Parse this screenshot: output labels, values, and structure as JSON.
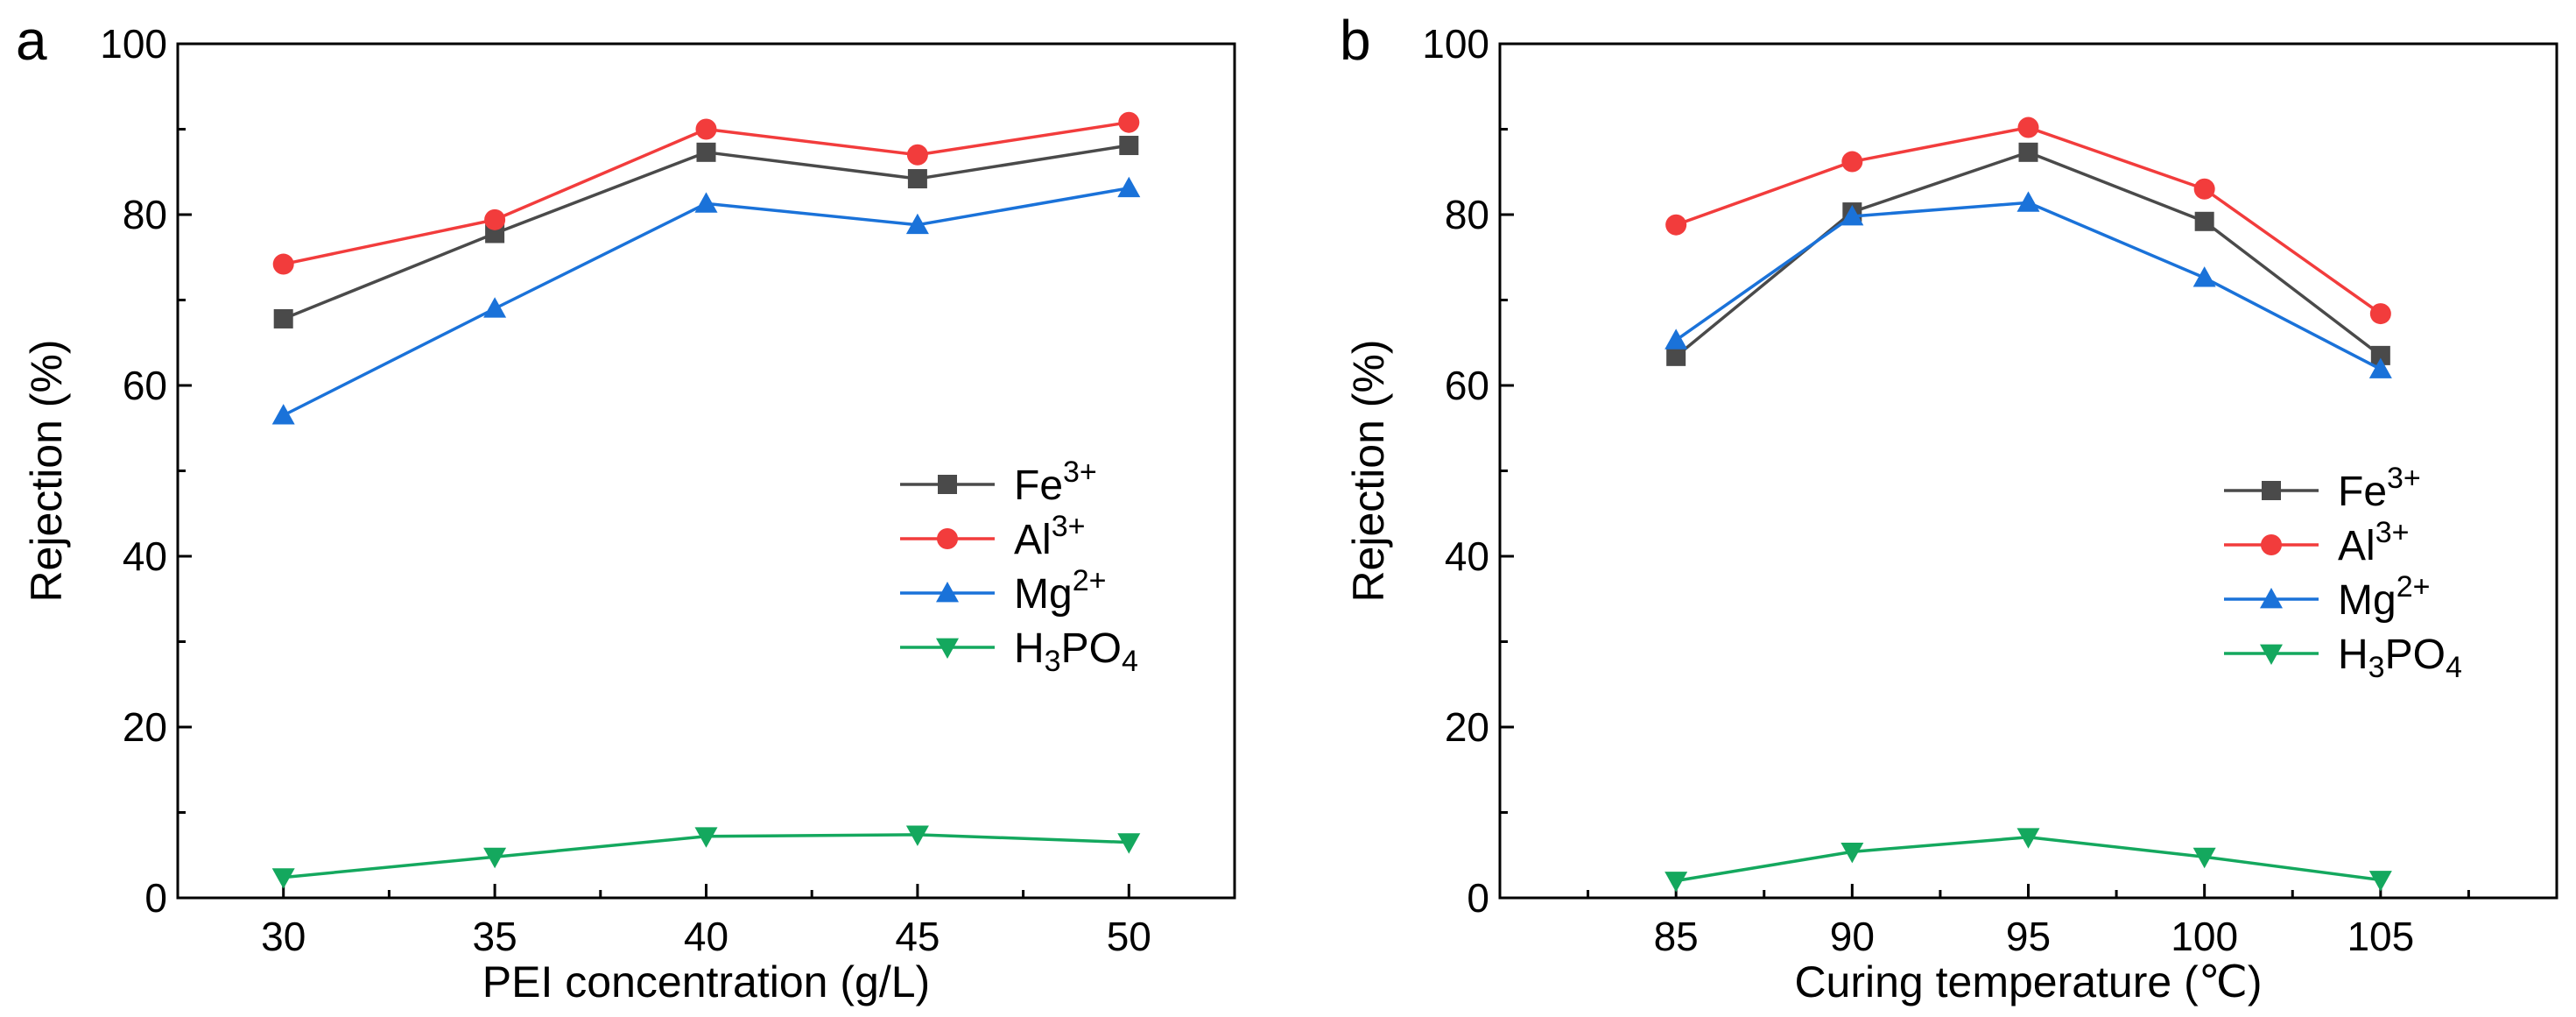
{
  "chart_data": [
    {
      "type": "line",
      "panel_label": "a",
      "title": "",
      "xlabel": "PEI concentration (g/L)",
      "ylabel": "Rejection (%)",
      "x": [
        30,
        35,
        40,
        45,
        50
      ],
      "x_tick_labels": [
        "30",
        "35",
        "40",
        "45",
        "50"
      ],
      "y_tick_labels": [
        "0",
        "20",
        "40",
        "60",
        "80",
        "100"
      ],
      "xlim": [
        27.5,
        52.5
      ],
      "ylim": [
        0,
        100
      ],
      "grid": false,
      "legend_position": "center-right",
      "series": [
        {
          "name": "Fe",
          "sup": "3+",
          "sub": "",
          "marker": "square",
          "color": "#4a4a4a",
          "values": [
            67.8,
            77.8,
            87.3,
            84.2,
            88.1
          ]
        },
        {
          "name": "Al",
          "sup": "3+",
          "sub": "",
          "marker": "circle",
          "color": "#f23c3c",
          "values": [
            74.2,
            79.4,
            90.0,
            87.0,
            90.8
          ]
        },
        {
          "name": "Mg",
          "sup": "2+",
          "sub": "",
          "marker": "triangle-up",
          "color": "#1a72d9",
          "values": [
            56.5,
            69.0,
            81.3,
            78.8,
            83.1
          ]
        },
        {
          "name": "H3PO4",
          "sup": "",
          "sub": "",
          "marker": "triangle-down",
          "color": "#14a85e",
          "values": [
            2.4,
            4.8,
            7.2,
            7.4,
            6.5
          ]
        }
      ]
    },
    {
      "type": "line",
      "panel_label": "b",
      "title": "",
      "xlabel": "Curing temperature (℃)",
      "ylabel": "Rejection (%)",
      "x": [
        85,
        90,
        95,
        100,
        105
      ],
      "x_tick_labels": [
        "85",
        "90",
        "95",
        "100",
        "105"
      ],
      "y_tick_labels": [
        "0",
        "20",
        "40",
        "60",
        "80",
        "100"
      ],
      "xlim": [
        80,
        110
      ],
      "ylim": [
        0,
        100
      ],
      "grid": false,
      "legend_position": "center-right",
      "series": [
        {
          "name": "Fe",
          "sup": "3+",
          "sub": "",
          "marker": "square",
          "color": "#4a4a4a",
          "values": [
            63.4,
            80.3,
            87.3,
            79.2,
            63.5
          ]
        },
        {
          "name": "Al",
          "sup": "3+",
          "sub": "",
          "marker": "circle",
          "color": "#f23c3c",
          "values": [
            78.8,
            86.2,
            90.2,
            83.0,
            68.4
          ]
        },
        {
          "name": "Mg",
          "sup": "2+",
          "sub": "",
          "marker": "triangle-up",
          "color": "#1a72d9",
          "values": [
            65.3,
            79.8,
            81.4,
            72.6,
            61.9
          ]
        },
        {
          "name": "H3PO4",
          "sup": "",
          "sub": "",
          "marker": "triangle-down",
          "color": "#14a85e",
          "values": [
            2.0,
            5.4,
            7.1,
            4.8,
            2.1
          ]
        }
      ]
    }
  ]
}
